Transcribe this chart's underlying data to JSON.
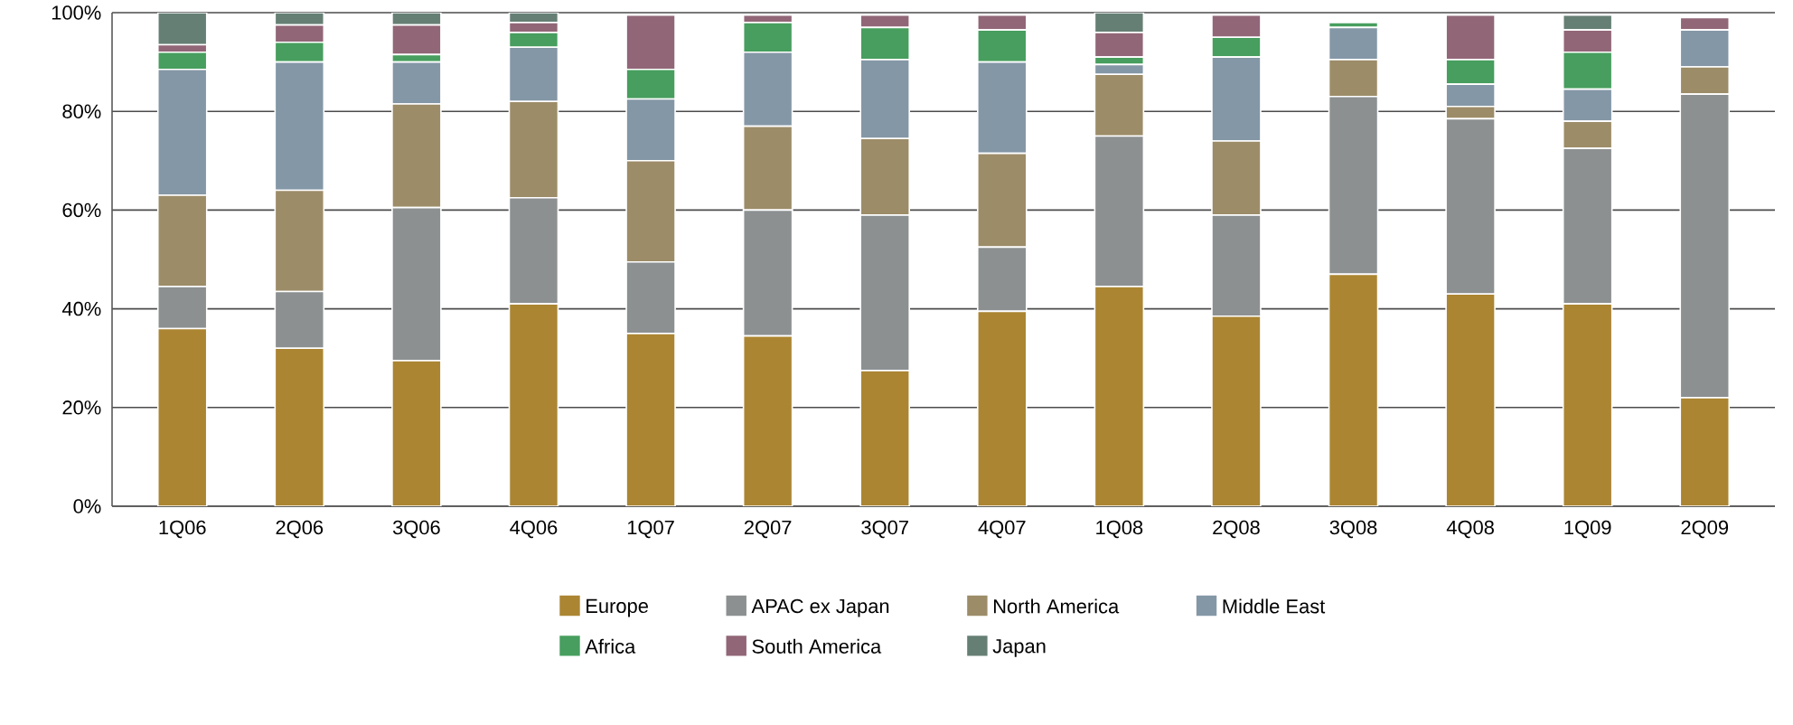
{
  "chart_data": {
    "type": "bar",
    "stacked": true,
    "categories": [
      "1Q06",
      "2Q06",
      "3Q06",
      "4Q06",
      "1Q07",
      "2Q07",
      "3Q07",
      "4Q07",
      "1Q08",
      "2Q08",
      "3Q08",
      "4Q08",
      "1Q09",
      "2Q09"
    ],
    "series": [
      {
        "name": "Europe",
        "color": "#ab8532",
        "values": [
          36,
          32,
          29.5,
          41,
          35,
          34.5,
          27.5,
          39.5,
          44.5,
          38.5,
          47,
          43,
          41,
          22
        ]
      },
      {
        "name": "APAC ex Japan",
        "color": "#8c9091",
        "values": [
          8.5,
          11.5,
          31,
          21.5,
          14.5,
          25.5,
          31.5,
          13,
          30.5,
          20.5,
          36,
          35.5,
          31.5,
          61.5
        ]
      },
      {
        "name": "North America",
        "color": "#9c8c68",
        "values": [
          18.5,
          20.5,
          21,
          19.5,
          20.5,
          17,
          15.5,
          19,
          12.5,
          15,
          7.5,
          2.5,
          5.5,
          5.5
        ]
      },
      {
        "name": "Middle East",
        "color": "#8497a6",
        "values": [
          25.5,
          26,
          8.5,
          11,
          12.5,
          15,
          16,
          18.5,
          2,
          17,
          6.5,
          4.5,
          6.5,
          7.5
        ]
      },
      {
        "name": "Africa",
        "color": "#479e5e",
        "values": [
          3.5,
          4,
          1.5,
          3,
          6,
          6,
          6.5,
          6.5,
          1.5,
          4,
          1,
          5,
          7.5,
          0
        ]
      },
      {
        "name": "South America",
        "color": "#916677",
        "values": [
          1.5,
          3.5,
          6,
          2,
          11,
          1.5,
          2.5,
          3,
          5,
          4.5,
          0,
          9,
          4.5,
          2.5
        ]
      },
      {
        "name": "Japan",
        "color": "#667f74",
        "values": [
          6.5,
          2.5,
          2.5,
          2,
          0,
          0,
          0,
          0,
          4,
          0,
          0,
          0,
          3,
          0
        ]
      }
    ],
    "ylim": [
      0,
      100
    ],
    "yticks": [
      {
        "value": 0,
        "label": "0%"
      },
      {
        "value": 20,
        "label": "20%"
      },
      {
        "value": 40,
        "label": "40%"
      },
      {
        "value": 60,
        "label": "60%"
      },
      {
        "value": 80,
        "label": "80%"
      },
      {
        "value": 100,
        "label": "100%"
      }
    ],
    "grid": "y",
    "legend": "bottom"
  }
}
